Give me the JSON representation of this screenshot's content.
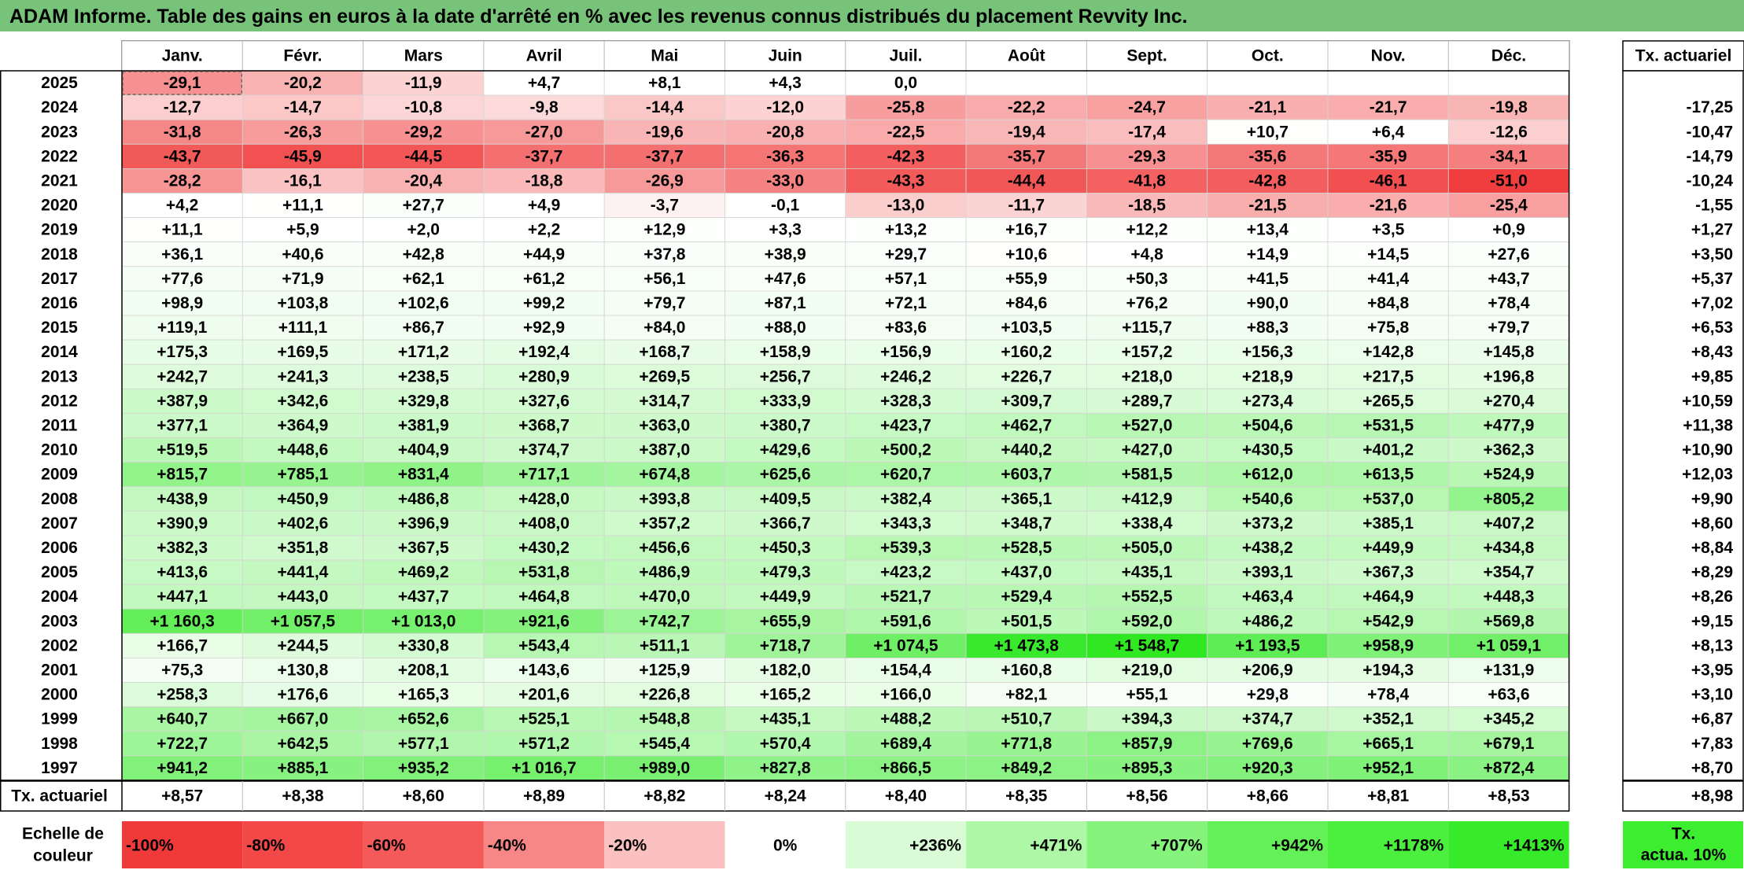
{
  "title": "ADAM Informe. Table des gains en euros à la date d'arrêté en % avec les revenus connus distribués du placement Revvity Inc.",
  "chart_data": {
    "type": "heatmap",
    "columns": [
      "Janv.",
      "Févr.",
      "Mars",
      "Avril",
      "Mai",
      "Juin",
      "Juil.",
      "Août",
      "Sept.",
      "Oct.",
      "Nov.",
      "Déc."
    ],
    "annual_header": "Tx. actuariel",
    "rows": [
      {
        "year": "2025",
        "values": [
          "-29,1",
          "-20,2",
          "-11,9",
          "+4,7",
          "+8,1",
          "+4,3",
          "0,0",
          "",
          "",
          "",
          "",
          ""
        ],
        "annual": ""
      },
      {
        "year": "2024",
        "values": [
          "-12,7",
          "-14,7",
          "-10,8",
          "-9,8",
          "-14,4",
          "-12,0",
          "-25,8",
          "-22,2",
          "-24,7",
          "-21,1",
          "-21,7",
          "-19,8"
        ],
        "annual": "-17,25"
      },
      {
        "year": "2023",
        "values": [
          "-31,8",
          "-26,3",
          "-29,2",
          "-27,0",
          "-19,6",
          "-20,8",
          "-22,5",
          "-19,4",
          "-17,4",
          "+10,7",
          "+6,4",
          "-12,6"
        ],
        "annual": "-10,47"
      },
      {
        "year": "2022",
        "values": [
          "-43,7",
          "-45,9",
          "-44,5",
          "-37,7",
          "-37,7",
          "-36,3",
          "-42,3",
          "-35,7",
          "-29,3",
          "-35,6",
          "-35,9",
          "-34,1"
        ],
        "annual": "-14,79"
      },
      {
        "year": "2021",
        "values": [
          "-28,2",
          "-16,1",
          "-20,4",
          "-18,8",
          "-26,9",
          "-33,0",
          "-43,3",
          "-44,4",
          "-41,8",
          "-42,8",
          "-46,1",
          "-51,0"
        ],
        "annual": "-10,24"
      },
      {
        "year": "2020",
        "values": [
          "+4,2",
          "+11,1",
          "+27,7",
          "+4,9",
          "-3,7",
          "-0,1",
          "-13,0",
          "-11,7",
          "-18,5",
          "-21,5",
          "-21,6",
          "-25,4"
        ],
        "annual": "-1,55"
      },
      {
        "year": "2019",
        "values": [
          "+11,1",
          "+5,9",
          "+2,0",
          "+2,2",
          "+12,9",
          "+3,3",
          "+13,2",
          "+16,7",
          "+12,2",
          "+13,4",
          "+3,5",
          "+0,9"
        ],
        "annual": "+1,27"
      },
      {
        "year": "2018",
        "values": [
          "+36,1",
          "+40,6",
          "+42,8",
          "+44,9",
          "+37,8",
          "+38,9",
          "+29,7",
          "+10,6",
          "+4,8",
          "+14,9",
          "+14,5",
          "+27,6"
        ],
        "annual": "+3,50"
      },
      {
        "year": "2017",
        "values": [
          "+77,6",
          "+71,9",
          "+62,1",
          "+61,2",
          "+56,1",
          "+47,6",
          "+57,1",
          "+55,9",
          "+50,3",
          "+41,5",
          "+41,4",
          "+43,7"
        ],
        "annual": "+5,37"
      },
      {
        "year": "2016",
        "values": [
          "+98,9",
          "+103,8",
          "+102,6",
          "+99,2",
          "+79,7",
          "+87,1",
          "+72,1",
          "+84,6",
          "+76,2",
          "+90,0",
          "+84,8",
          "+78,4"
        ],
        "annual": "+7,02"
      },
      {
        "year": "2015",
        "values": [
          "+119,1",
          "+111,1",
          "+86,7",
          "+92,9",
          "+84,0",
          "+88,0",
          "+83,6",
          "+103,5",
          "+115,7",
          "+88,3",
          "+75,8",
          "+79,7"
        ],
        "annual": "+6,53"
      },
      {
        "year": "2014",
        "values": [
          "+175,3",
          "+169,5",
          "+171,2",
          "+192,4",
          "+168,7",
          "+158,9",
          "+156,9",
          "+160,2",
          "+157,2",
          "+156,3",
          "+142,8",
          "+145,8"
        ],
        "annual": "+8,43"
      },
      {
        "year": "2013",
        "values": [
          "+242,7",
          "+241,3",
          "+238,5",
          "+280,9",
          "+269,5",
          "+256,7",
          "+246,2",
          "+226,7",
          "+218,0",
          "+218,9",
          "+217,5",
          "+196,8"
        ],
        "annual": "+9,85"
      },
      {
        "year": "2012",
        "values": [
          "+387,9",
          "+342,6",
          "+329,8",
          "+327,6",
          "+314,7",
          "+333,9",
          "+328,3",
          "+309,7",
          "+289,7",
          "+273,4",
          "+265,5",
          "+270,4"
        ],
        "annual": "+10,59"
      },
      {
        "year": "2011",
        "values": [
          "+377,1",
          "+364,9",
          "+381,9",
          "+368,7",
          "+363,0",
          "+380,7",
          "+423,7",
          "+462,7",
          "+527,0",
          "+504,6",
          "+531,5",
          "+477,9"
        ],
        "annual": "+11,38"
      },
      {
        "year": "2010",
        "values": [
          "+519,5",
          "+448,6",
          "+404,9",
          "+374,7",
          "+387,0",
          "+429,6",
          "+500,2",
          "+440,2",
          "+427,0",
          "+430,5",
          "+401,2",
          "+362,3"
        ],
        "annual": "+10,90"
      },
      {
        "year": "2009",
        "values": [
          "+815,7",
          "+785,1",
          "+831,4",
          "+717,1",
          "+674,8",
          "+625,6",
          "+620,7",
          "+603,7",
          "+581,5",
          "+612,0",
          "+613,5",
          "+524,9"
        ],
        "annual": "+12,03"
      },
      {
        "year": "2008",
        "values": [
          "+438,9",
          "+450,9",
          "+486,8",
          "+428,0",
          "+393,8",
          "+409,5",
          "+382,4",
          "+365,1",
          "+412,9",
          "+540,6",
          "+537,0",
          "+805,2"
        ],
        "annual": "+9,90"
      },
      {
        "year": "2007",
        "values": [
          "+390,9",
          "+402,6",
          "+396,9",
          "+408,0",
          "+357,2",
          "+366,7",
          "+343,3",
          "+348,7",
          "+338,4",
          "+373,2",
          "+385,1",
          "+407,2"
        ],
        "annual": "+8,60"
      },
      {
        "year": "2006",
        "values": [
          "+382,3",
          "+351,8",
          "+367,5",
          "+430,2",
          "+456,6",
          "+450,3",
          "+539,3",
          "+528,5",
          "+505,0",
          "+438,2",
          "+449,9",
          "+434,8"
        ],
        "annual": "+8,84"
      },
      {
        "year": "2005",
        "values": [
          "+413,6",
          "+441,4",
          "+469,2",
          "+531,8",
          "+486,9",
          "+479,3",
          "+423,2",
          "+437,0",
          "+435,1",
          "+393,1",
          "+367,3",
          "+354,7"
        ],
        "annual": "+8,29"
      },
      {
        "year": "2004",
        "values": [
          "+447,1",
          "+443,0",
          "+437,7",
          "+464,8",
          "+470,0",
          "+449,9",
          "+521,7",
          "+529,4",
          "+552,5",
          "+463,4",
          "+464,9",
          "+448,3"
        ],
        "annual": "+8,26"
      },
      {
        "year": "2003",
        "values": [
          "+1 160,3",
          "+1 057,5",
          "+1 013,0",
          "+921,6",
          "+742,7",
          "+655,9",
          "+591,6",
          "+501,5",
          "+592,0",
          "+486,2",
          "+542,9",
          "+569,8"
        ],
        "annual": "+9,15"
      },
      {
        "year": "2002",
        "values": [
          "+166,7",
          "+244,5",
          "+330,8",
          "+543,4",
          "+511,1",
          "+718,7",
          "+1 074,5",
          "+1 473,8",
          "+1 548,7",
          "+1 193,5",
          "+958,9",
          "+1 059,1"
        ],
        "annual": "+8,13"
      },
      {
        "year": "2001",
        "values": [
          "+75,3",
          "+130,8",
          "+208,1",
          "+143,6",
          "+125,9",
          "+182,0",
          "+154,4",
          "+160,8",
          "+219,0",
          "+206,9",
          "+194,3",
          "+131,9"
        ],
        "annual": "+3,95"
      },
      {
        "year": "2000",
        "values": [
          "+258,3",
          "+176,6",
          "+165,3",
          "+201,6",
          "+226,8",
          "+165,2",
          "+166,0",
          "+82,1",
          "+55,1",
          "+29,8",
          "+78,4",
          "+63,6"
        ],
        "annual": "+3,10"
      },
      {
        "year": "1999",
        "values": [
          "+640,7",
          "+667,0",
          "+652,6",
          "+525,1",
          "+548,8",
          "+435,1",
          "+488,2",
          "+510,7",
          "+394,3",
          "+374,7",
          "+352,1",
          "+345,2"
        ],
        "annual": "+6,87"
      },
      {
        "year": "1998",
        "values": [
          "+722,7",
          "+642,5",
          "+577,1",
          "+571,2",
          "+545,4",
          "+570,4",
          "+689,4",
          "+771,8",
          "+857,9",
          "+769,6",
          "+665,1",
          "+679,1"
        ],
        "annual": "+7,83"
      },
      {
        "year": "1997",
        "values": [
          "+941,2",
          "+885,1",
          "+935,2",
          "+1 016,7",
          "+989,0",
          "+827,8",
          "+866,5",
          "+849,2",
          "+895,3",
          "+920,3",
          "+952,1",
          "+872,4"
        ],
        "annual": "+8,70"
      }
    ],
    "footer_label": "Tx. actuariel",
    "footer_values": [
      "+8,57",
      "+8,38",
      "+8,60",
      "+8,89",
      "+8,82",
      "+8,24",
      "+8,40",
      "+8,35",
      "+8,56",
      "+8,66",
      "+8,81",
      "+8,53"
    ],
    "footer_annual": "+8,98",
    "legend": {
      "label_line1": "Echelle de",
      "label_line2": "couleur",
      "steps": [
        {
          "label": "-100%",
          "value": -100,
          "color": "#f03a3a"
        },
        {
          "label": "-80%",
          "value": -80,
          "color": "#f24848"
        },
        {
          "label": "-60%",
          "value": -60,
          "color": "#f45a5a"
        },
        {
          "label": "-40%",
          "value": -40,
          "color": "#f78787"
        },
        {
          "label": "-20%",
          "value": -20,
          "color": "#fbc0c0"
        },
        {
          "label": "0%",
          "value": 0,
          "color": "#ffffff"
        },
        {
          "label": "+236%",
          "value": 236,
          "color": "#d9fbd5"
        },
        {
          "label": "+471%",
          "value": 471,
          "color": "#aef7a6"
        },
        {
          "label": "+707%",
          "value": 707,
          "color": "#86f47c"
        },
        {
          "label": "+942%",
          "value": 942,
          "color": "#63f157"
        },
        {
          "label": "+1178%",
          "value": 1178,
          "color": "#4bef3e"
        },
        {
          "label": "+1413%",
          "value": 1413,
          "color": "#37eb2a"
        }
      ],
      "annual_line1": "Tx.",
      "annual_line2": "actua. 10%",
      "annual_color": "#3ded30"
    },
    "colors": {
      "negative_max": "#f03a3a",
      "neutral": "#ffffff",
      "positive_max": "#2fe822",
      "title_bar": "#77c37a"
    }
  }
}
